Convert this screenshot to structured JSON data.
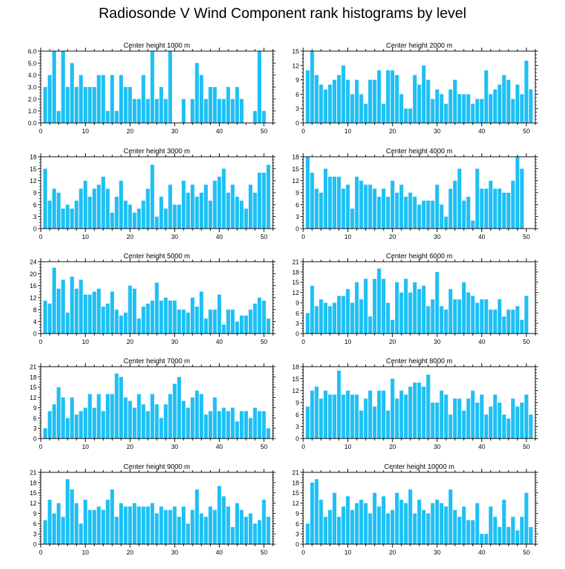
{
  "title": "Radiosonde V Wind Component rank histograms by level",
  "colors": {
    "bar": "#1ec0f4",
    "axis": "#000000",
    "background": "#ffffff"
  },
  "chart_data": [
    {
      "type": "bar",
      "title": "Center height 1000 m",
      "xlabel": "",
      "ylabel": "",
      "x": [
        1,
        2,
        3,
        4,
        5,
        6,
        7,
        8,
        9,
        10,
        11,
        12,
        13,
        14,
        15,
        16,
        17,
        18,
        19,
        20,
        21,
        22,
        23,
        24,
        25,
        26,
        27,
        28,
        29,
        30,
        31,
        32,
        33,
        34,
        35,
        36,
        37,
        38,
        39,
        40,
        41,
        42,
        43,
        44,
        45,
        46,
        47,
        48,
        49,
        50,
        51
      ],
      "values": [
        3,
        4,
        6,
        1,
        6,
        3,
        5,
        3,
        4,
        3,
        3,
        3,
        4,
        4,
        1,
        4,
        1,
        4,
        3,
        3,
        2,
        2,
        4,
        2,
        6,
        2,
        3,
        2,
        6,
        0,
        0,
        2,
        0,
        2,
        5,
        4,
        2,
        3,
        3,
        2,
        2,
        3,
        2,
        3,
        2,
        0,
        0,
        1,
        6,
        1,
        0
      ],
      "xlim": [
        0,
        52
      ],
      "ylim": [
        0,
        6
      ],
      "xticks": [
        0,
        10,
        20,
        30,
        40,
        50
      ],
      "yticks": [
        0,
        1,
        2,
        3,
        4,
        5,
        6
      ],
      "ytick_labels": [
        "0.0",
        "1.0",
        "2.0",
        "3.0",
        "4.0",
        "5.0",
        "6.0"
      ]
    },
    {
      "type": "bar",
      "title": "Center height 2000 m",
      "xlabel": "",
      "ylabel": "",
      "x": [
        1,
        2,
        3,
        4,
        5,
        6,
        7,
        8,
        9,
        10,
        11,
        12,
        13,
        14,
        15,
        16,
        17,
        18,
        19,
        20,
        21,
        22,
        23,
        24,
        25,
        26,
        27,
        28,
        29,
        30,
        31,
        32,
        33,
        34,
        35,
        36,
        37,
        38,
        39,
        40,
        41,
        42,
        43,
        44,
        45,
        46,
        47,
        48,
        49,
        50,
        51
      ],
      "values": [
        11,
        15,
        10,
        8,
        7,
        8,
        9,
        10,
        12,
        9,
        6,
        9,
        6,
        4,
        9,
        9,
        11,
        4,
        11,
        11,
        10,
        6,
        3,
        3,
        10,
        8,
        12,
        9,
        5,
        7,
        6,
        4,
        7,
        9,
        6,
        6,
        6,
        4,
        5,
        5,
        11,
        6,
        7,
        8,
        10,
        9,
        5,
        8,
        6,
        13,
        7
      ],
      "xlim": [
        0,
        52
      ],
      "ylim": [
        0,
        15
      ],
      "xticks": [
        0,
        10,
        20,
        30,
        40,
        50
      ],
      "yticks": [
        0,
        3,
        6,
        9,
        12,
        15
      ],
      "ytick_labels": [
        "0",
        "3",
        "6",
        "9",
        "12",
        "15"
      ]
    },
    {
      "type": "bar",
      "title": "Center height 3000 m",
      "xlabel": "",
      "ylabel": "",
      "x": [
        1,
        2,
        3,
        4,
        5,
        6,
        7,
        8,
        9,
        10,
        11,
        12,
        13,
        14,
        15,
        16,
        17,
        18,
        19,
        20,
        21,
        22,
        23,
        24,
        25,
        26,
        27,
        28,
        29,
        30,
        31,
        32,
        33,
        34,
        35,
        36,
        37,
        38,
        39,
        40,
        41,
        42,
        43,
        44,
        45,
        46,
        47,
        48,
        49,
        50,
        51
      ],
      "values": [
        15,
        7,
        10,
        9,
        5,
        6,
        5,
        7,
        10,
        12,
        8,
        10,
        11,
        13,
        10,
        4,
        8,
        12,
        7,
        6,
        4,
        5,
        7,
        10,
        16,
        3,
        8,
        5,
        11,
        6,
        6,
        12,
        9,
        11,
        8,
        9,
        11,
        7,
        12,
        13,
        15,
        9,
        11,
        8,
        7,
        5,
        11,
        9,
        14,
        14,
        16
      ],
      "xlim": [
        0,
        52
      ],
      "ylim": [
        0,
        18
      ],
      "xticks": [
        0,
        10,
        20,
        30,
        40,
        50
      ],
      "yticks": [
        0,
        3,
        6,
        9,
        12,
        15,
        18
      ],
      "ytick_labels": [
        "0",
        "3",
        "6",
        "9",
        "12",
        "15",
        "18"
      ]
    },
    {
      "type": "bar",
      "title": "Center height 4000 m",
      "xlabel": "",
      "ylabel": "",
      "x": [
        1,
        2,
        3,
        4,
        5,
        6,
        7,
        8,
        9,
        10,
        11,
        12,
        13,
        14,
        15,
        16,
        17,
        18,
        19,
        20,
        21,
        22,
        23,
        24,
        25,
        26,
        27,
        28,
        29,
        30,
        31,
        32,
        33,
        34,
        35,
        36,
        37,
        38,
        39,
        40,
        41,
        42,
        43,
        44,
        45,
        46,
        47,
        48,
        49,
        50,
        51
      ],
      "values": [
        18,
        14,
        10,
        9,
        15,
        13,
        13,
        13,
        10,
        11,
        5,
        13,
        12,
        11,
        11,
        10,
        8,
        10,
        8,
        12,
        9,
        11,
        8,
        9,
        8,
        6,
        7,
        7,
        7,
        11,
        6,
        3,
        10,
        12,
        15,
        7,
        8,
        2,
        15,
        10,
        10,
        12,
        10,
        10,
        9,
        9,
        12,
        18,
        15,
        0,
        0
      ],
      "xlim": [
        0,
        52
      ],
      "ylim": [
        0,
        18
      ],
      "xticks": [
        0,
        10,
        20,
        30,
        40,
        50
      ],
      "yticks": [
        0,
        3,
        6,
        9,
        12,
        15,
        18
      ],
      "ytick_labels": [
        "0",
        "3",
        "6",
        "9",
        "12",
        "15",
        "18"
      ]
    },
    {
      "type": "bar",
      "title": "Center height 5000 m",
      "xlabel": "",
      "ylabel": "",
      "x": [
        1,
        2,
        3,
        4,
        5,
        6,
        7,
        8,
        9,
        10,
        11,
        12,
        13,
        14,
        15,
        16,
        17,
        18,
        19,
        20,
        21,
        22,
        23,
        24,
        25,
        26,
        27,
        28,
        29,
        30,
        31,
        32,
        33,
        34,
        35,
        36,
        37,
        38,
        39,
        40,
        41,
        42,
        43,
        44,
        45,
        46,
        47,
        48,
        49,
        50,
        51
      ],
      "values": [
        11,
        10,
        22,
        15,
        18,
        7,
        19,
        15,
        18,
        13,
        13,
        14,
        15,
        9,
        10,
        14,
        8,
        6,
        7,
        16,
        15,
        5,
        9,
        10,
        11,
        17,
        11,
        12,
        11,
        11,
        8,
        8,
        7,
        12,
        9,
        14,
        5,
        8,
        8,
        13,
        3,
        8,
        8,
        4,
        6,
        6,
        8,
        10,
        12,
        11,
        5
      ],
      "xlim": [
        0,
        52
      ],
      "ylim": [
        0,
        24
      ],
      "xticks": [
        0,
        10,
        20,
        30,
        40,
        50
      ],
      "yticks": [
        0,
        4,
        8,
        12,
        16,
        20,
        24
      ],
      "ytick_labels": [
        "0",
        "4",
        "8",
        "12",
        "16",
        "20",
        "24"
      ]
    },
    {
      "type": "bar",
      "title": "Center height 6000 m",
      "xlabel": "",
      "ylabel": "",
      "x": [
        1,
        2,
        3,
        4,
        5,
        6,
        7,
        8,
        9,
        10,
        11,
        12,
        13,
        14,
        15,
        16,
        17,
        18,
        19,
        20,
        21,
        22,
        23,
        24,
        25,
        26,
        27,
        28,
        29,
        30,
        31,
        32,
        33,
        34,
        35,
        36,
        37,
        38,
        39,
        40,
        41,
        42,
        43,
        44,
        45,
        46,
        47,
        48,
        49,
        50,
        51
      ],
      "values": [
        6,
        14,
        8,
        10,
        9,
        8,
        9,
        11,
        11,
        13,
        9,
        15,
        10,
        16,
        5,
        16,
        19,
        16,
        9,
        4,
        15,
        12,
        16,
        12,
        15,
        13,
        14,
        8,
        10,
        18,
        8,
        7,
        13,
        10,
        10,
        15,
        12,
        11,
        9,
        10,
        10,
        7,
        7,
        10,
        5,
        7,
        7,
        8,
        4,
        11,
        0
      ],
      "xlim": [
        0,
        52
      ],
      "ylim": [
        0,
        21
      ],
      "xticks": [
        0,
        10,
        20,
        30,
        40,
        50
      ],
      "yticks": [
        0,
        3,
        6,
        9,
        12,
        15,
        18,
        21
      ],
      "ytick_labels": [
        "0",
        "3",
        "6",
        "9",
        "12",
        "15",
        "18",
        "21"
      ]
    },
    {
      "type": "bar",
      "title": "Center height 7000 m",
      "xlabel": "",
      "ylabel": "",
      "x": [
        1,
        2,
        3,
        4,
        5,
        6,
        7,
        8,
        9,
        10,
        11,
        12,
        13,
        14,
        15,
        16,
        17,
        18,
        19,
        20,
        21,
        22,
        23,
        24,
        25,
        26,
        27,
        28,
        29,
        30,
        31,
        32,
        33,
        34,
        35,
        36,
        37,
        38,
        39,
        40,
        41,
        42,
        43,
        44,
        45,
        46,
        47,
        48,
        49,
        50,
        51
      ],
      "values": [
        3,
        8,
        10,
        15,
        12,
        6,
        12,
        7,
        8,
        9,
        13,
        9,
        13,
        8,
        13,
        13,
        19,
        18,
        12,
        11,
        9,
        13,
        10,
        8,
        13,
        10,
        6,
        10,
        13,
        16,
        18,
        11,
        9,
        12,
        14,
        13,
        7,
        8,
        12,
        8,
        9,
        8,
        9,
        5,
        8,
        8,
        6,
        9,
        8,
        8,
        3
      ],
      "xlim": [
        0,
        52
      ],
      "ylim": [
        0,
        21
      ],
      "xticks": [
        0,
        10,
        20,
        30,
        40,
        50
      ],
      "yticks": [
        0,
        3,
        6,
        9,
        12,
        15,
        18,
        21
      ],
      "ytick_labels": [
        "0",
        "3",
        "6",
        "9",
        "12",
        "15",
        "18",
        "21"
      ]
    },
    {
      "type": "bar",
      "title": "Center height 8000 m",
      "xlabel": "",
      "ylabel": "",
      "x": [
        1,
        2,
        3,
        4,
        5,
        6,
        7,
        8,
        9,
        10,
        11,
        12,
        13,
        14,
        15,
        16,
        17,
        18,
        19,
        20,
        21,
        22,
        23,
        24,
        25,
        26,
        27,
        28,
        29,
        30,
        31,
        32,
        33,
        34,
        35,
        36,
        37,
        38,
        39,
        40,
        41,
        42,
        43,
        44,
        45,
        46,
        47,
        48,
        49,
        50,
        51
      ],
      "values": [
        8,
        12,
        13,
        10,
        12,
        11,
        11,
        17,
        11,
        12,
        11,
        11,
        7,
        10,
        12,
        8,
        12,
        12,
        7,
        15,
        10,
        12,
        11,
        13,
        14,
        14,
        13,
        16,
        9,
        9,
        12,
        11,
        6,
        10,
        10,
        7,
        10,
        12,
        9,
        11,
        6,
        8,
        11,
        9,
        6,
        5,
        10,
        8,
        9,
        11,
        6
      ],
      "xlim": [
        0,
        52
      ],
      "ylim": [
        0,
        18
      ],
      "xticks": [
        0,
        10,
        20,
        30,
        40,
        50
      ],
      "yticks": [
        0,
        3,
        6,
        9,
        12,
        15,
        18
      ],
      "ytick_labels": [
        "0",
        "3",
        "6",
        "9",
        "12",
        "15",
        "18"
      ]
    },
    {
      "type": "bar",
      "title": "Center height 9000 m",
      "xlabel": "",
      "ylabel": "",
      "x": [
        1,
        2,
        3,
        4,
        5,
        6,
        7,
        8,
        9,
        10,
        11,
        12,
        13,
        14,
        15,
        16,
        17,
        18,
        19,
        20,
        21,
        22,
        23,
        24,
        25,
        26,
        27,
        28,
        29,
        30,
        31,
        32,
        33,
        34,
        35,
        36,
        37,
        38,
        39,
        40,
        41,
        42,
        43,
        44,
        45,
        46,
        47,
        48,
        49,
        50,
        51
      ],
      "values": [
        7,
        13,
        9,
        12,
        8,
        19,
        16,
        12,
        6,
        13,
        10,
        10,
        11,
        10,
        13,
        16,
        8,
        12,
        11,
        11,
        12,
        11,
        11,
        11,
        12,
        9,
        11,
        10,
        10,
        11,
        8,
        11,
        6,
        10,
        16,
        9,
        8,
        11,
        10,
        17,
        14,
        11,
        5,
        12,
        10,
        8,
        9,
        6,
        7,
        13,
        8
      ],
      "xlim": [
        0,
        52
      ],
      "ylim": [
        0,
        21
      ],
      "xticks": [
        0,
        10,
        20,
        30,
        40,
        50
      ],
      "yticks": [
        0,
        3,
        6,
        9,
        12,
        15,
        18,
        21
      ],
      "ytick_labels": [
        "0",
        "3",
        "6",
        "9",
        "12",
        "15",
        "18",
        "21"
      ]
    },
    {
      "type": "bar",
      "title": "Center height 10000 m",
      "xlabel": "",
      "ylabel": "",
      "x": [
        1,
        2,
        3,
        4,
        5,
        6,
        7,
        8,
        9,
        10,
        11,
        12,
        13,
        14,
        15,
        16,
        17,
        18,
        19,
        20,
        21,
        22,
        23,
        24,
        25,
        26,
        27,
        28,
        29,
        30,
        31,
        32,
        33,
        34,
        35,
        36,
        37,
        38,
        39,
        40,
        41,
        42,
        43,
        44,
        45,
        46,
        47,
        48,
        49,
        50,
        51
      ],
      "values": [
        6,
        18,
        19,
        13,
        8,
        10,
        15,
        8,
        11,
        14,
        10,
        12,
        13,
        12,
        9,
        15,
        11,
        14,
        9,
        10,
        15,
        13,
        12,
        16,
        9,
        13,
        10,
        9,
        12,
        13,
        12,
        11,
        16,
        10,
        8,
        11,
        7,
        7,
        12,
        3,
        3,
        11,
        8,
        5,
        13,
        5,
        8,
        4,
        8,
        15,
        5
      ],
      "xlim": [
        0,
        52
      ],
      "ylim": [
        0,
        21
      ],
      "xticks": [
        0,
        10,
        20,
        30,
        40,
        50
      ],
      "yticks": [
        0,
        3,
        6,
        9,
        12,
        15,
        18,
        21
      ],
      "ytick_labels": [
        "0",
        "3",
        "6",
        "9",
        "12",
        "15",
        "18",
        "21"
      ]
    }
  ]
}
